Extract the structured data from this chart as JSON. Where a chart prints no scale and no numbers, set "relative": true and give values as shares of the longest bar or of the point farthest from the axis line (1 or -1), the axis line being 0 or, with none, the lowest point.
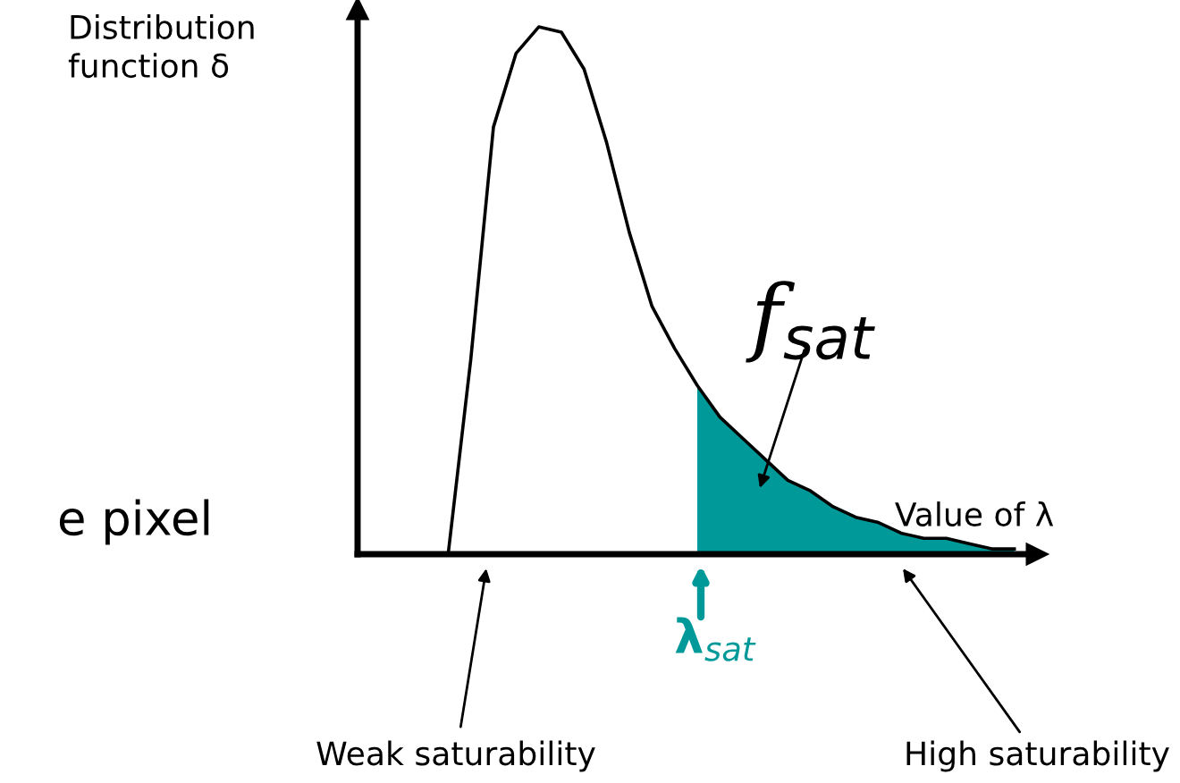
{
  "chart_data": {
    "type": "line",
    "relative": true,
    "ylabel": "Distribution\nfunction δ",
    "xlabel": "Value of λ",
    "categories": [
      null,
      null,
      null,
      null,
      null,
      null,
      null,
      null,
      null,
      null,
      null,
      null,
      null,
      null,
      null,
      null,
      null,
      null,
      null,
      null,
      null,
      null,
      null,
      null,
      null,
      null,
      null,
      null,
      null,
      null
    ],
    "series": [
      {
        "color": "#000000",
        "values": [
          null,
          null,
          null,
          null,
          0,
          0.37,
          0.81,
          0.95,
          1.0,
          0.99,
          0.92,
          0.78,
          0.61,
          0.47,
          0.39,
          0.32,
          0.26,
          0.22,
          0.18,
          0.14,
          0.12,
          0.09,
          0.07,
          0.06,
          0.04,
          0.03,
          0.03,
          0.02,
          0.01,
          0.01
        ]
      },
      {
        "type": "area",
        "color": "#009999",
        "values": [
          null,
          null,
          null,
          null,
          null,
          null,
          null,
          null,
          null,
          null,
          null,
          null,
          null,
          null,
          null,
          0.32,
          0.26,
          0.22,
          0.18,
          0.14,
          0.12,
          0.09,
          0.07,
          0.06,
          0.04,
          0.03,
          0.03,
          0.02,
          0.01,
          0.01
        ]
      }
    ],
    "annotations": [
      "e pixel",
      "f$_{sat}$",
      "λ$_{sat}$",
      "Weak saturability",
      "High saturability"
    ]
  }
}
